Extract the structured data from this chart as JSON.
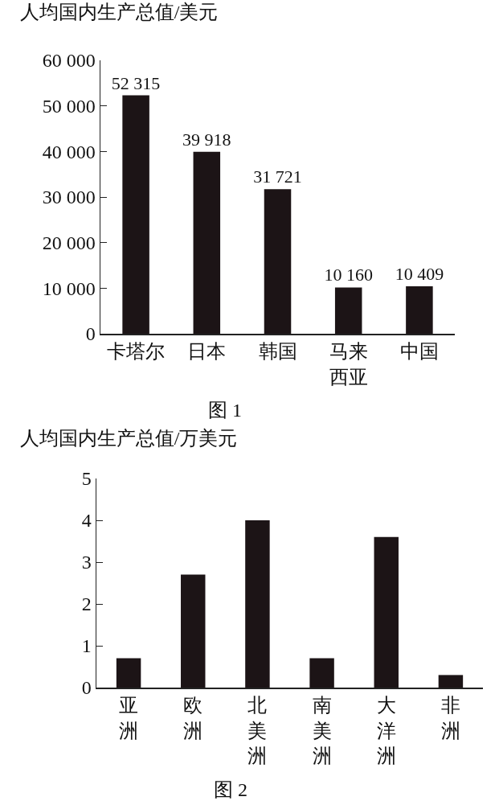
{
  "chart_data": [
    {
      "type": "bar",
      "ylabel": "人均国内生产总值/美元",
      "categories": [
        "卡塔尔",
        "日本",
        "韩国",
        "马来西亚",
        "中国"
      ],
      "values": [
        52315,
        39918,
        31721,
        10160,
        10409
      ],
      "value_labels": [
        "52 315",
        "39 918",
        "31 721",
        "10 160",
        "10 409"
      ],
      "color": "#1c1416",
      "ylim": [
        0,
        60000
      ],
      "yticks": [
        0,
        {
          "value": 10000,
          "label": "10 000"
        },
        {
          "value": 20000,
          "label": "20 000"
        },
        {
          "value": 30000,
          "label": "30 000"
        },
        {
          "value": 40000,
          "label": "40 000"
        },
        {
          "value": 50000,
          "label": "50 000"
        },
        {
          "value": 60000,
          "label": "60 000"
        }
      ],
      "grid": false,
      "annotations": [
        "图 1"
      ]
    },
    {
      "type": "bar",
      "ylabel": "人均国内生产总值/万美元",
      "categories": [
        "亚洲",
        "欧洲",
        "北美洲",
        "南美洲",
        "大洋洲",
        "非洲"
      ],
      "values": [
        0.7,
        2.7,
        4.0,
        0.7,
        3.6,
        0.3
      ],
      "color": "#1c1416",
      "ylim": [
        0,
        5
      ],
      "yticks": [
        0,
        1,
        2,
        3,
        4,
        5
      ],
      "grid": false,
      "annotations": [
        "图 2"
      ]
    }
  ]
}
